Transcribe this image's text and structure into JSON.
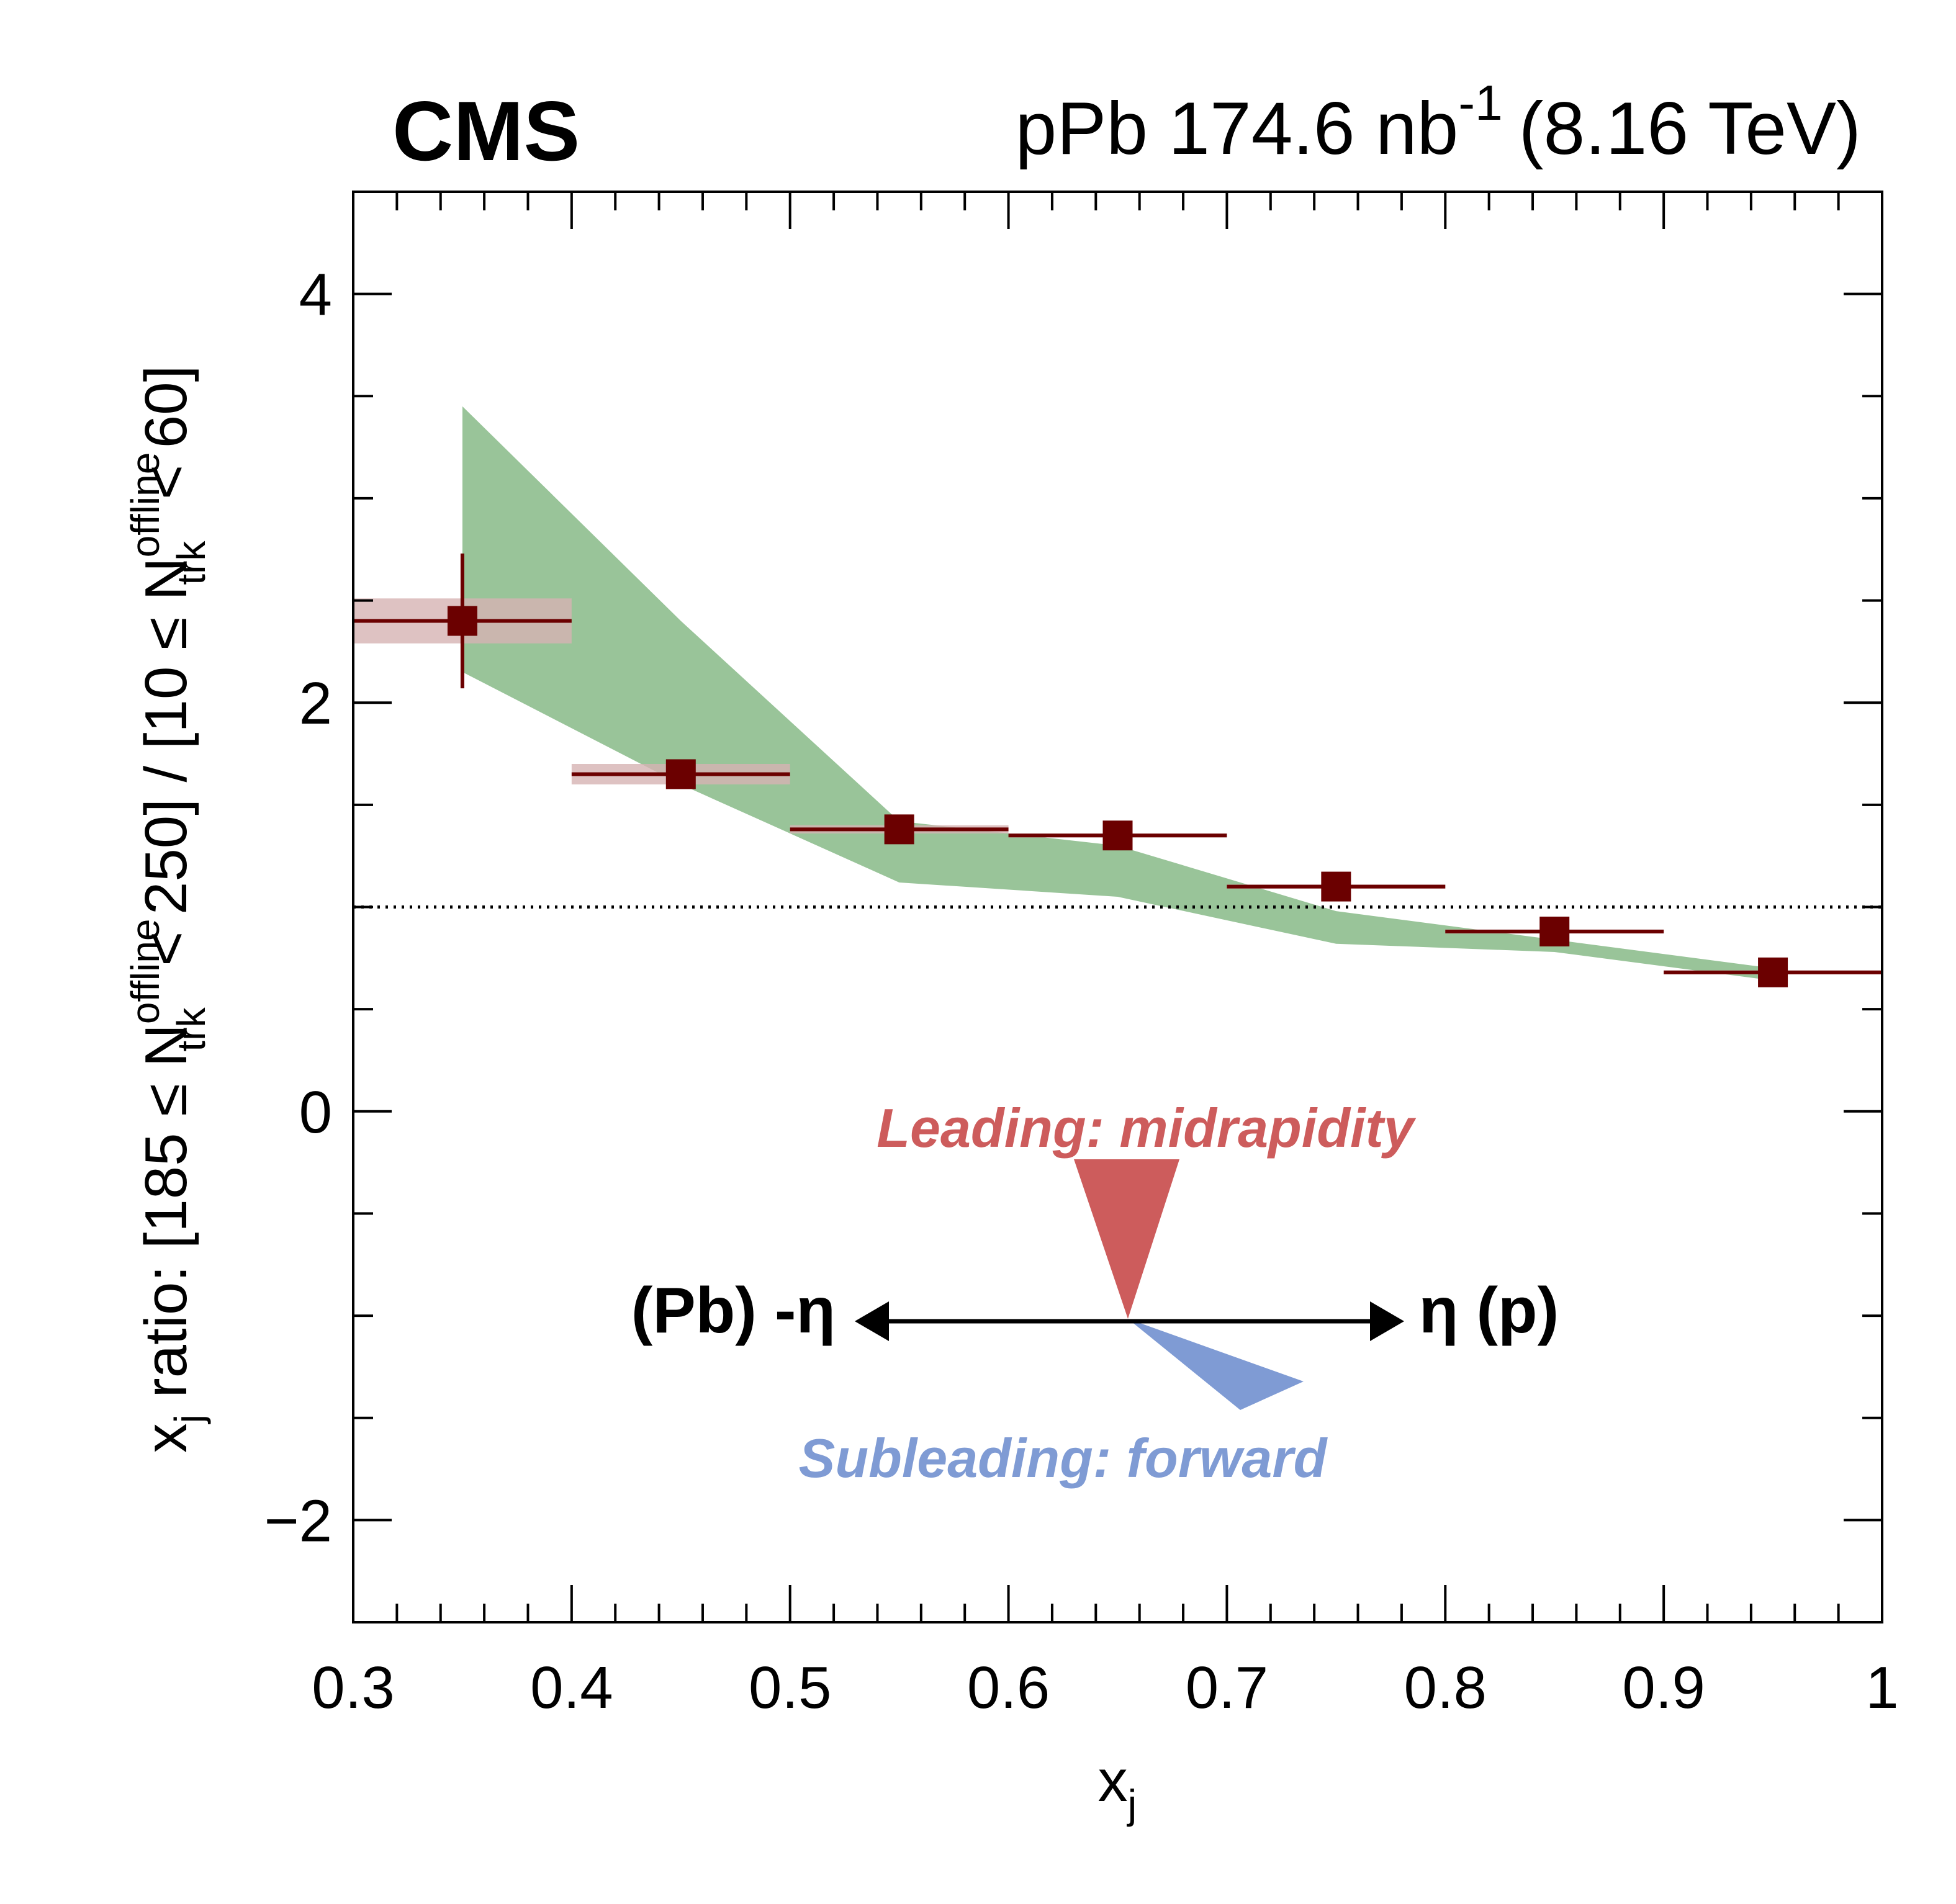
{
  "header": {
    "experiment": "CMS",
    "dataset_main": "pPb 174.6 nb",
    "dataset_sup": "-1",
    "dataset_energy": "(8.16 TeV)"
  },
  "axes": {
    "x": {
      "base": "x",
      "sub": "j"
    },
    "y": {
      "part1": "x",
      "part1_sub": "j",
      "part2": " ratio: [185 ≤ N",
      "part2_sup": "offline",
      "part2_sub": "trk",
      "part3": " < 250] / [10 ≤ N",
      "part3_sup": "offline",
      "part3_sub": "trk",
      "part4": " < 60]"
    }
  },
  "annotations": {
    "leading": "Leading: midrapidity",
    "subleading": "Subleading: forward",
    "left_label": "(Pb) -η",
    "right_label": "η (p)"
  },
  "colors": {
    "marker": "#6b0000",
    "band": "#99c499",
    "syst": "#d6b3b3",
    "leading": "#cd5c5c",
    "subleading": "#7f9bd4",
    "axis": "#000000"
  },
  "chart_data": {
    "type": "scatter",
    "xlim": [
      0.3,
      1.0
    ],
    "ylim": [
      -2.5,
      4.5
    ],
    "x_ticks": [
      "0.3",
      "0.4",
      "0.5",
      "0.6",
      "0.7",
      "0.8",
      "0.9",
      "1"
    ],
    "y_ticks": [
      "−2",
      "0",
      "2",
      "4"
    ],
    "reference_line": 1.0,
    "series": [
      {
        "x": [
          0.35,
          0.45,
          0.55,
          0.65,
          0.75,
          0.85,
          0.95
        ],
        "x_err": [
          0.05,
          0.05,
          0.05,
          0.05,
          0.05,
          0.05,
          0.05
        ],
        "y": [
          2.4,
          1.65,
          1.38,
          1.35,
          1.1,
          0.88,
          0.68
        ],
        "y_stat": [
          0.33,
          0.07,
          0.03,
          0.02,
          0.02,
          0.02,
          0.01
        ],
        "y_syst": [
          0.11,
          0.05,
          0.02,
          0.01,
          0.01,
          0.01,
          0.01
        ]
      }
    ],
    "model_band": {
      "x": [
        0.35,
        0.45,
        0.55,
        0.65,
        0.75,
        0.85,
        0.95
      ],
      "y_low": [
        2.15,
        1.6,
        1.12,
        1.05,
        0.82,
        0.78,
        0.64
      ],
      "y_high": [
        3.45,
        2.4,
        1.42,
        1.3,
        0.98,
        0.84,
        0.7
      ]
    }
  }
}
